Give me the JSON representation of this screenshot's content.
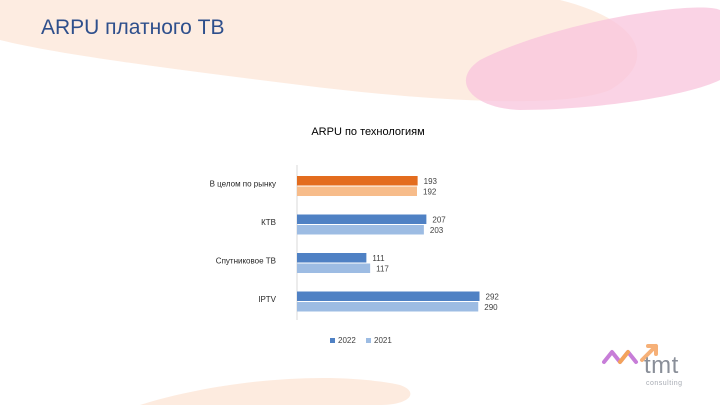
{
  "slide": {
    "title": "ARPU платного ТВ"
  },
  "logo": {
    "name": "tmt",
    "subtitle": "consulting"
  },
  "colors": {
    "title": "#2e4f8c",
    "series_2022": "#4f81c4",
    "series_2021": "#9dbce3",
    "highlight_2022": "#e36c1e",
    "highlight_2021": "#f7bc8a",
    "bg_peach": "#fde7d7",
    "bg_pink": "#f9c8de"
  },
  "chart_data": {
    "type": "bar",
    "orientation": "horizontal",
    "title": "ARPU по технологиям",
    "categories": [
      "В целом по рынку",
      "КТВ",
      "Спутниковое ТВ",
      "IPTV"
    ],
    "series": [
      {
        "name": "2022",
        "values": [
          193,
          207,
          111,
          292
        ]
      },
      {
        "name": "2021",
        "values": [
          192,
          203,
          117,
          290
        ]
      }
    ],
    "highlight_category": "В целом по рынку",
    "xlim": [
      0,
      300
    ],
    "grid": false,
    "legend_position": "bottom"
  }
}
